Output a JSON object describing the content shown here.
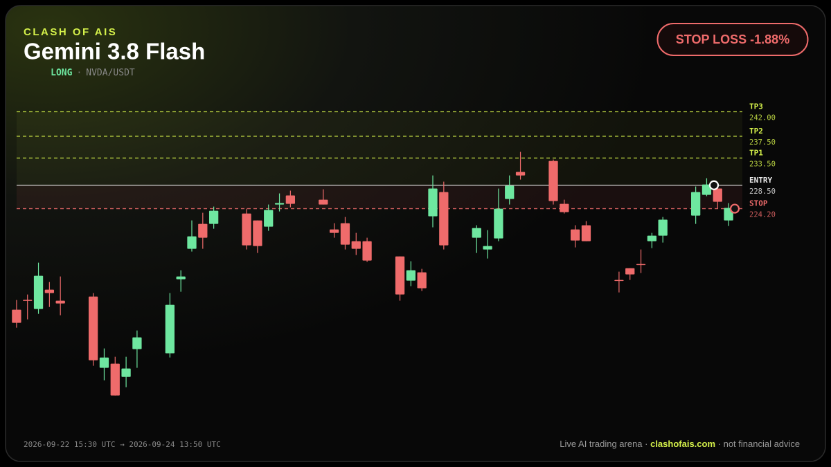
{
  "header": {
    "brand": "CLASH OF AIS",
    "title": "Gemini 3.8 Flash",
    "side": "LONG",
    "separator": "·",
    "pair": "NVDA/USDT",
    "badge": "STOP LOSS -1.88%"
  },
  "chart_data": {
    "type": "candlestick",
    "ylim": [
      185,
      245.5
    ],
    "up_color": "#6ee7a0",
    "down_color": "#ef6b6b",
    "open": [
      205.64,
      207.45,
      205.76,
      209.32,
      207.29,
      null,
      null,
      208.05,
      194.96,
      195.72,
      193.3,
      198.39,
      null,
      null,
      197.63,
      211.23,
      216.83,
      221.4,
      221.4,
      null,
      null,
      223.31,
      222.04,
      220.89,
      224.96,
      226.62,
      null,
      null,
      225.85,
      220.38,
      221.53,
      218.22,
      218.22,
      null,
      null,
      215.43,
      210.98,
      212.5,
      222.8,
      227.25,
      null,
      null,
      218.86,
      216.7,
      218.73,
      225.98,
      230.94,
      null,
      null,
      232.97,
      225.09,
      220.38,
      221.15,
      null,
      null,
      211.1,
      213.27,
      214.03,
      218.22,
      219.24,
      null,
      null,
      222.93,
      226.74,
      227.89,
      222.04
    ],
    "high": [
      207.42,
      208.43,
      214.28,
      210.72,
      211.74,
      null,
      null,
      208.69,
      198.52,
      196.99,
      196.99,
      201.82,
      null,
      null,
      208.69,
      212.88,
      222.04,
      223.44,
      224.58,
      null,
      null,
      224.2,
      222.04,
      224.96,
      227.0,
      227.51,
      null,
      null,
      227.76,
      221.53,
      222.67,
      219.75,
      218.86,
      null,
      null,
      215.43,
      214.54,
      213.14,
      230.3,
      229.16,
      null,
      null,
      221.15,
      220.26,
      227.89,
      230.3,
      234.63,
      null,
      null,
      233.23,
      225.85,
      221.15,
      221.91,
      null,
      null,
      212.63,
      213.27,
      216.7,
      219.75,
      222.67,
      null,
      null,
      228.27,
      229.79,
      228.4,
      225.22
    ],
    "low": [
      202.33,
      203.86,
      204.87,
      206.14,
      204.62,
      null,
      null,
      195.34,
      192.67,
      189.87,
      191.4,
      194.96,
      null,
      null,
      196.86,
      208.94,
      216.32,
      216.83,
      220.51,
      null,
      null,
      216.7,
      216.06,
      220.13,
      223.69,
      224.45,
      null,
      null,
      224.96,
      218.86,
      216.7,
      215.68,
      214.41,
      null,
      null,
      207.29,
      209.96,
      209.07,
      220.77,
      216.7,
      null,
      null,
      216.06,
      215.04,
      218.22,
      224.96,
      229.54,
      null,
      null,
      224.96,
      223.31,
      217.08,
      218.22,
      null,
      null,
      208.81,
      211.1,
      212.37,
      216.95,
      217.97,
      null,
      null,
      221.4,
      226.49,
      224.2,
      221.02
    ],
    "close": [
      203.22,
      207.4,
      211.87,
      208.69,
      206.78,
      null,
      null,
      196.35,
      196.86,
      189.87,
      194.83,
      200.55,
      null,
      null,
      206.53,
      211.74,
      219.11,
      218.86,
      223.82,
      null,
      null,
      217.46,
      217.33,
      223.95,
      225.22,
      225.09,
      null,
      null,
      224.96,
      219.75,
      217.59,
      216.83,
      214.66,
      null,
      null,
      208.43,
      212.88,
      209.58,
      227.89,
      217.46,
      null,
      null,
      220.64,
      217.33,
      224.2,
      228.4,
      230.3,
      null,
      null,
      225.6,
      223.56,
      218.35,
      218.22,
      null,
      null,
      211.05,
      212.12,
      213.9,
      219.24,
      222.17,
      null,
      null,
      227.25,
      228.65,
      225.47,
      224.33
    ],
    "levels": [
      {
        "name": "TP3",
        "price": {
          "value": 242,
          "label": "242.00"
        },
        "color": "#d4f04a",
        "dashed": true
      },
      {
        "name": "TP2",
        "price": {
          "value": 237.5,
          "label": "237.50"
        },
        "color": "#d4f04a",
        "dashed": true
      },
      {
        "name": "TP1",
        "price": {
          "value": 233.5,
          "label": "233.50"
        },
        "color": "#d4f04a",
        "dashed": true
      },
      {
        "name": "ENTRY",
        "price": {
          "value": 228.5,
          "label": "228.50"
        },
        "color": "#e8e8e8",
        "dashed": false
      },
      {
        "name": "STOP",
        "price": {
          "value": 224.2,
          "label": "224.20"
        },
        "color": "#ef6b6b",
        "dashed": true
      }
    ]
  },
  "footer": {
    "time_range": "2026-09-22 15:30 UTC → 2026-09-24 13:50 UTC",
    "tagline": "Live AI trading arena · ",
    "site": "clashofais.com",
    "disclaimer": " · not financial advice"
  }
}
